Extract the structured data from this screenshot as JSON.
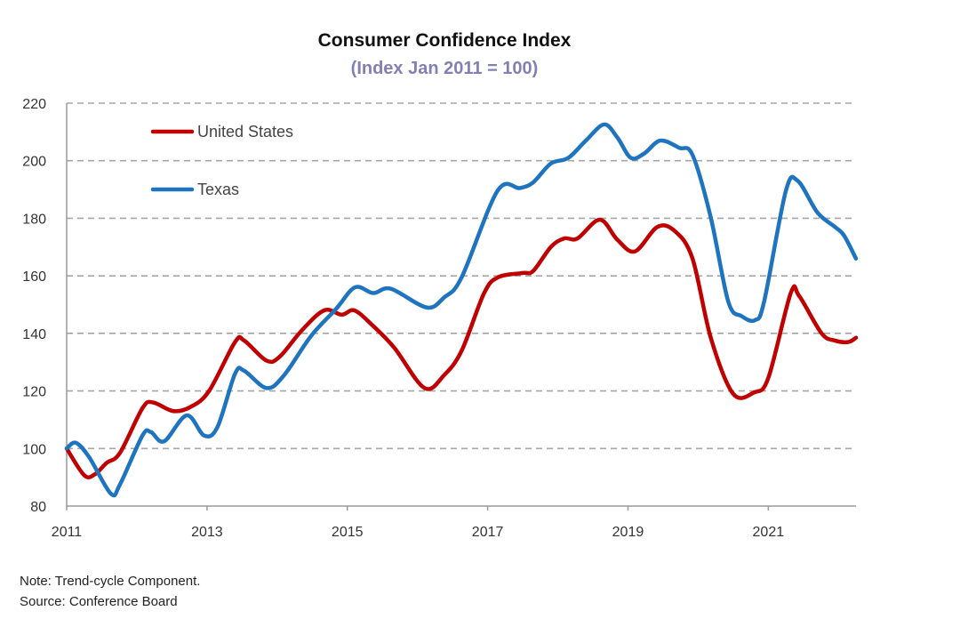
{
  "chart_data": {
    "type": "line",
    "title": "Consumer Confidence Index",
    "subtitle": "(Index Jan 2011 = 100)",
    "xlabel": "",
    "ylabel": "",
    "xlim": [
      2011,
      2022.25
    ],
    "ylim": [
      80,
      220
    ],
    "yticks": [
      80,
      100,
      120,
      140,
      160,
      180,
      200,
      220
    ],
    "xticks": [
      2011,
      2013,
      2015,
      2017,
      2019,
      2021
    ],
    "grid": "horizontal dashed",
    "legend_position": "top-left",
    "series": [
      {
        "name": "United States",
        "color": "#c00000",
        "x": [
          2011.0,
          2011.25,
          2011.4,
          2011.57,
          2011.76,
          2012.08,
          2012.23,
          2012.52,
          2012.77,
          2013.03,
          2013.4,
          2013.53,
          2013.85,
          2014.04,
          2014.35,
          2014.67,
          2014.92,
          2015.1,
          2015.35,
          2015.67,
          2016.1,
          2016.38,
          2016.63,
          2016.95,
          2017.15,
          2017.5,
          2017.65,
          2017.9,
          2018.09,
          2018.28,
          2018.6,
          2018.85,
          2019.1,
          2019.42,
          2019.67,
          2019.92,
          2020.18,
          2020.5,
          2020.8,
          2021.0,
          2021.32,
          2021.44,
          2021.76,
          2021.95,
          2022.14,
          2022.25
        ],
        "y": [
          100,
          90.7,
          91,
          95,
          98.5,
          114,
          116,
          113,
          114.5,
          120,
          137,
          137.5,
          130.5,
          132,
          141,
          148,
          146.5,
          148,
          143,
          135,
          121,
          125.5,
          134,
          154,
          159.5,
          161,
          161.7,
          170,
          173,
          173,
          179.5,
          172.5,
          168.5,
          177,
          175.5,
          166,
          138.5,
          119,
          119.5,
          124.5,
          154,
          153,
          140,
          137.5,
          137,
          138.5
        ]
      },
      {
        "name": "Texas",
        "color": "#1f74c0",
        "x": [
          2011.0,
          2011.13,
          2011.32,
          2011.63,
          2011.76,
          2012.08,
          2012.2,
          2012.39,
          2012.71,
          2012.96,
          2013.15,
          2013.4,
          2013.53,
          2013.85,
          2014.1,
          2014.48,
          2014.84,
          2015.11,
          2015.37,
          2015.62,
          2016.13,
          2016.38,
          2016.63,
          2017.14,
          2017.46,
          2017.65,
          2017.9,
          2018.15,
          2018.4,
          2018.66,
          2018.85,
          2019.04,
          2019.23,
          2019.46,
          2019.73,
          2019.92,
          2020.18,
          2020.43,
          2020.62,
          2020.81,
          2020.94,
          2021.25,
          2021.42,
          2021.7,
          2021.95,
          2022.08,
          2022.25
        ],
        "y": [
          100,
          102,
          97,
          84.3,
          87.5,
          104.5,
          105.7,
          102.5,
          111.5,
          104.5,
          107.5,
          126,
          127,
          121,
          125.5,
          139,
          148.5,
          156,
          154,
          155.5,
          149,
          152.5,
          159.5,
          189.5,
          190.5,
          192.5,
          199,
          201,
          207,
          212.6,
          208,
          201,
          202.5,
          207,
          204.5,
          202,
          180.3,
          151,
          146,
          144.6,
          151,
          189.5,
          193,
          182,
          177,
          174,
          166
        ]
      }
    ]
  },
  "notes": {
    "note": "Note: Trend-cycle Component.",
    "source": "Source: Conference Board"
  }
}
